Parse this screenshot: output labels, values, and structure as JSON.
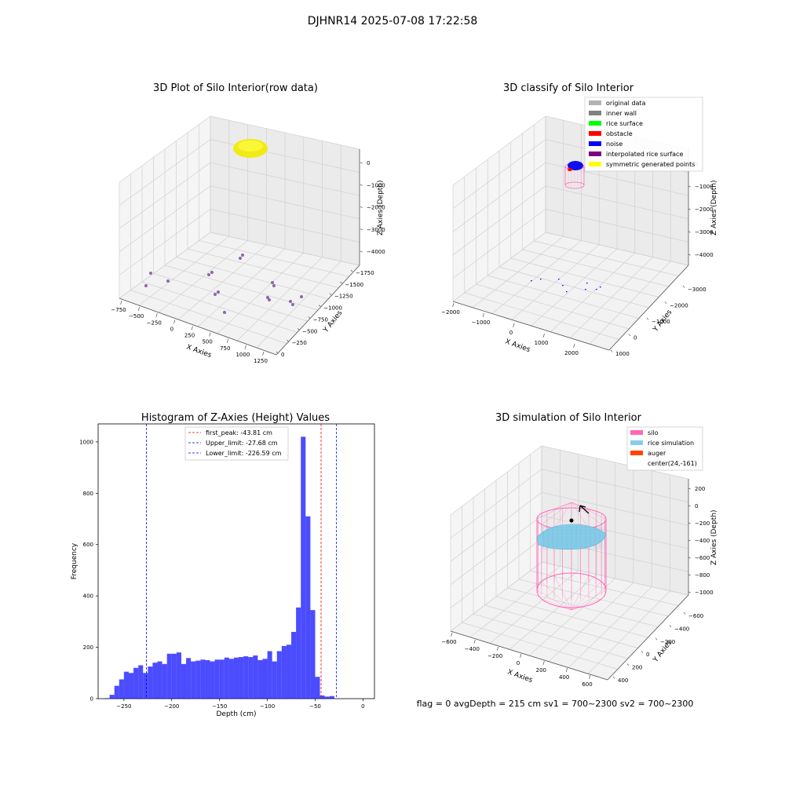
{
  "suptitle": "DJHNR14 2025-07-08 17:22:58",
  "footer": "flag = 0     avgDepth = 215 cm  sv1 = 700~2300  sv2 = 700~2300",
  "colors": {
    "raw": "#f2ea14",
    "points": "#7b4ea1",
    "silo": "#ff69b4",
    "rice": "#87ceeb",
    "auger": "#ff4500",
    "hist": "#0000ff",
    "first_peak": "#ff0000",
    "limit": "#0000ff"
  },
  "chart_data": [
    {
      "type": "scatter3d",
      "title": "3D Plot of Silo Interior(row data)",
      "xlabel": "X Axies",
      "ylabel": "Y Axies",
      "zlabel": "Z Axies (Depth)",
      "xticks": [
        "−750",
        "−500",
        "−250",
        "0",
        "250",
        "500",
        "750",
        "1000",
        "1250"
      ],
      "yticks": [
        "0",
        "−250",
        "−500",
        "−750",
        "−1000",
        "−1250",
        "−1500",
        "−1750"
      ],
      "zticks": [
        "0",
        "−1000",
        "−2000",
        "−3000",
        "−4000"
      ]
    },
    {
      "type": "scatter3d",
      "title": "3D classify of Silo Interior",
      "xlabel": "X Axies",
      "ylabel": "Y Axies",
      "zlabel": "Z Axies (Depth)",
      "xticks": [
        "−2000",
        "−1000",
        "0",
        "1000",
        "2000"
      ],
      "yticks": [
        "1000",
        "0",
        "−1000",
        "−2000",
        "−3000"
      ],
      "zticks": [
        "0",
        "−1000",
        "−2000",
        "−3000",
        "−4000"
      ],
      "legend": [
        {
          "label": "original data",
          "color": "#b3b3b3"
        },
        {
          "label": "inner wall",
          "color": "#808080"
        },
        {
          "label": "rice surface",
          "color": "#00ff00"
        },
        {
          "label": "obstacle",
          "color": "#ff0000"
        },
        {
          "label": "noise",
          "color": "#0000ff"
        },
        {
          "label": "interpolated rice surface",
          "color": "#800080"
        },
        {
          "label": "symmetric generated points",
          "color": "#ffff00"
        }
      ]
    },
    {
      "type": "bar",
      "title": "Histogram of Z-Axies (Height) Values",
      "xlabel": "Depth (cm)",
      "ylabel": "Frequency",
      "xlim": [
        -277,
        12
      ],
      "ylim": [
        0,
        1070
      ],
      "xticks": [
        -250,
        -200,
        -150,
        -100,
        -50,
        0
      ],
      "yticks": [
        0,
        200,
        400,
        600,
        800,
        1000
      ],
      "bin_start": -270,
      "bin_width": 5,
      "values": [
        2,
        15,
        50,
        75,
        105,
        100,
        120,
        130,
        100,
        125,
        140,
        145,
        135,
        175,
        175,
        180,
        135,
        158,
        145,
        148,
        152,
        150,
        145,
        152,
        152,
        160,
        155,
        160,
        162,
        165,
        162,
        168,
        150,
        155,
        185,
        145,
        185,
        205,
        210,
        260,
        355,
        1020,
        710,
        345,
        85,
        12,
        8,
        10
      ],
      "lines": [
        {
          "label": "first_peak: -43.81 cm",
          "x": -43.81,
          "color": "#ff0000"
        },
        {
          "label": "Upper_limit: -27.68 cm",
          "x": -27.68,
          "color": "#0000ff"
        },
        {
          "label": "Lower_limit: -226.59 cm",
          "x": -226.59,
          "color": "#0000ff"
        }
      ]
    },
    {
      "type": "surface3d",
      "title": "3D simulation of Silo Interior",
      "xlabel": "X Axies",
      "ylabel": "Y Axies",
      "zlabel": "Z Axies (Depth)",
      "xticks": [
        "−600",
        "−400",
        "−200",
        "0",
        "200",
        "400",
        "600"
      ],
      "yticks": [
        "400",
        "200",
        "0",
        "−200",
        "−400",
        "−600"
      ],
      "zticks": [
        "200",
        "0",
        "−200",
        "−400",
        "−600",
        "−800",
        "−1000"
      ],
      "legend": [
        {
          "label": "silo",
          "color": "#ff69b4"
        },
        {
          "label": "rice simulation",
          "color": "#87ceeb"
        },
        {
          "label": "auger",
          "color": "#ff4500"
        },
        {
          "label": "center(24,-161)",
          "color": ""
        }
      ]
    }
  ]
}
